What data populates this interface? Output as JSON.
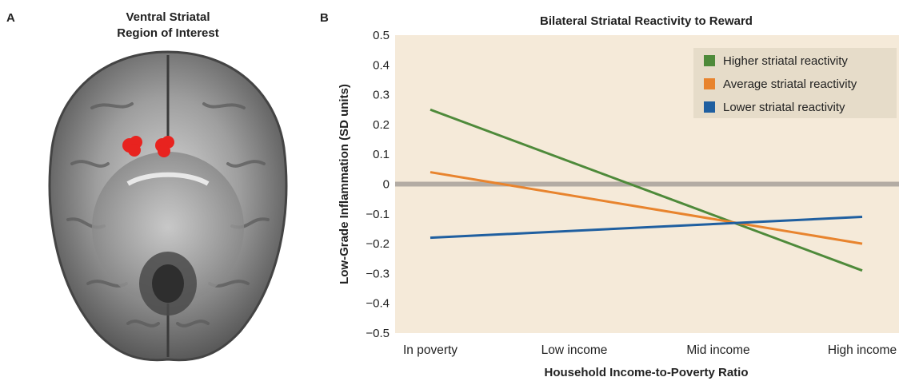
{
  "panels": {
    "a_letter": "A",
    "b_letter": "B",
    "roi_title_line1": "Ventral Striatal",
    "roi_title_line2": "Region of Interest"
  },
  "colors": {
    "plot_background": "#f5ead9",
    "zero_line": "#b3aca4",
    "legend_background": "#e6dcc9",
    "roi_highlight": "#e8231f"
  },
  "chart_data": {
    "type": "line",
    "title": "Bilateral Striatal Reactivity to Reward",
    "xlabel": "Household Income-to-Poverty Ratio",
    "ylabel": "Low-Grade Inflammation (SD units)",
    "categories": [
      "In poverty",
      "Low income",
      "Mid income",
      "High income"
    ],
    "ylim": [
      -0.5,
      0.5
    ],
    "yticks": [
      0.5,
      0.4,
      0.3,
      0.2,
      0.1,
      0,
      -0.1,
      -0.2,
      -0.3,
      -0.4,
      -0.5
    ],
    "ytick_labels": [
      "0.5",
      "0.4",
      "0.3",
      "0.2",
      "0.1",
      "0",
      "−0.1",
      "−0.2",
      "−0.3",
      "−0.4",
      "−0.5"
    ],
    "grid": false,
    "legend_position": "top-right",
    "series": [
      {
        "name": "Higher striatal reactivity",
        "color": "#4e8a3a",
        "x": [
          "In poverty",
          "High income"
        ],
        "values": [
          0.25,
          -0.29
        ]
      },
      {
        "name": "Average striatal reactivity",
        "color": "#e8842e",
        "x": [
          "In poverty",
          "High income"
        ],
        "values": [
          0.04,
          -0.2
        ]
      },
      {
        "name": "Lower striatal reactivity",
        "color": "#1f5fa0",
        "x": [
          "In poverty",
          "High income"
        ],
        "values": [
          -0.18,
          -0.11
        ]
      }
    ]
  }
}
